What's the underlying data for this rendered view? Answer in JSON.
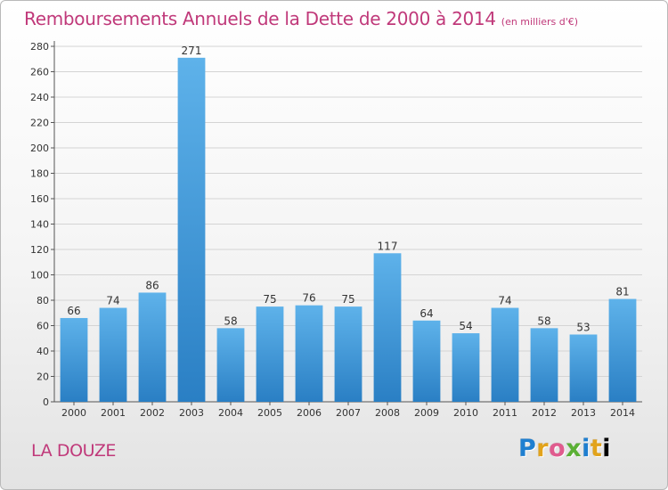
{
  "title": "Remboursements Annuels de la Dette de 2000 à 2014",
  "unit": "(en milliers d'€)",
  "location": "LA DOUZE",
  "logo_text": "Proxiti",
  "colors": {
    "bar": "#2f86cc",
    "bar_light": "#5aaee6",
    "title": "#c0397a"
  },
  "chart_data": {
    "type": "bar",
    "title": "Remboursements Annuels de la Dette de 2000 à 2014",
    "xlabel": "",
    "ylabel": "",
    "ylim": [
      0,
      280
    ],
    "yticks": [
      0,
      20,
      40,
      60,
      80,
      100,
      120,
      140,
      160,
      180,
      200,
      220,
      240,
      260,
      280
    ],
    "grid": true,
    "categories": [
      "2000",
      "2001",
      "2002",
      "2003",
      "2004",
      "2005",
      "2006",
      "2007",
      "2008",
      "2009",
      "2010",
      "2011",
      "2012",
      "2013",
      "2014"
    ],
    "values": [
      66,
      74,
      86,
      271,
      58,
      75,
      76,
      75,
      117,
      64,
      54,
      74,
      58,
      53,
      81
    ]
  }
}
